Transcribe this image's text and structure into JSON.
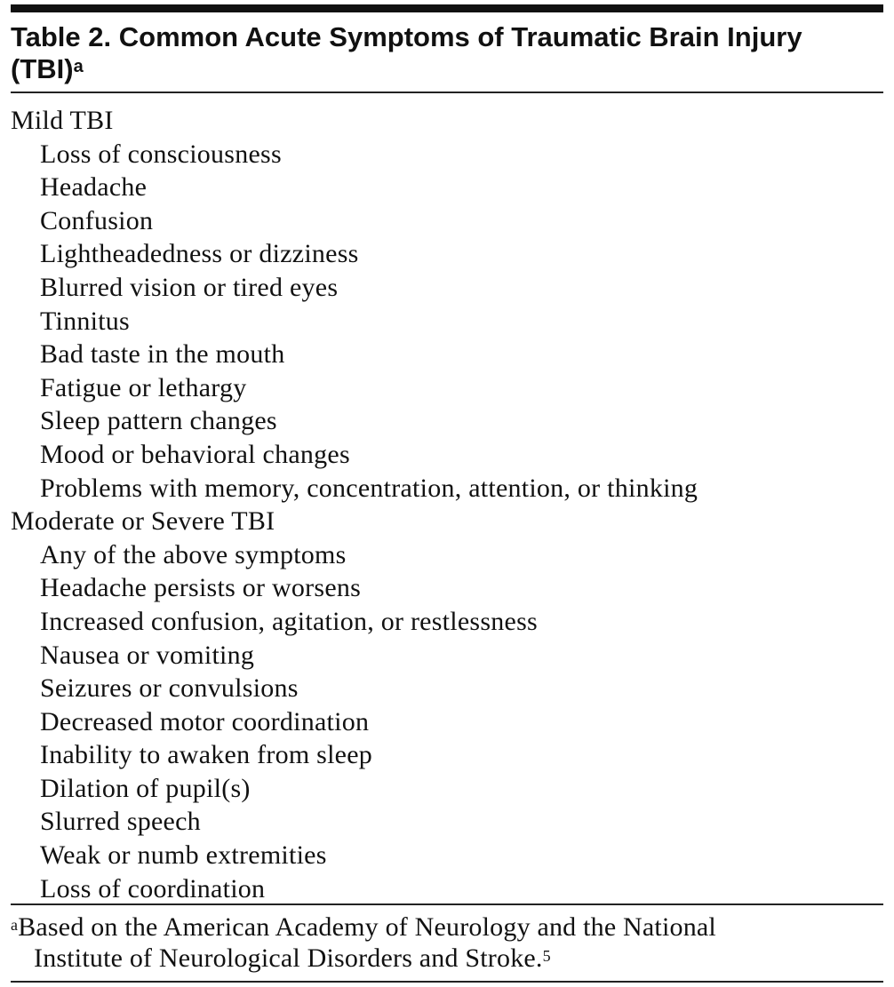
{
  "title": {
    "line1": "Table 2. Common Acute Symptoms of Traumatic Brain Injury",
    "line2": "(TBI)",
    "footnote_marker": "a"
  },
  "sections": [
    {
      "heading": "Mild TBI",
      "items": [
        "Loss of consciousness",
        "Headache",
        "Confusion",
        "Lightheadedness or dizziness",
        "Blurred vision or tired eyes",
        "Tinnitus",
        "Bad taste in the mouth",
        "Fatigue or lethargy",
        "Sleep pattern changes",
        "Mood or behavioral changes",
        "Problems with memory, concentration, attention, or thinking"
      ]
    },
    {
      "heading": "Moderate or Severe TBI",
      "items": [
        "Any of the above symptoms",
        "Headache persists or worsens",
        "Increased confusion, agitation, or restlessness",
        "Nausea or vomiting",
        "Seizures or convulsions",
        "Decreased motor coordination",
        "Inability to awaken from sleep",
        "Dilation of pupil(s)",
        "Slurred speech",
        "Weak or numb extremities",
        "Loss of coordination"
      ]
    }
  ],
  "footnote": {
    "marker": "a",
    "line1": "Based on the American Academy of Neurology and the National",
    "line2": "Institute of Neurological Disorders and Stroke.",
    "ref": "5"
  }
}
